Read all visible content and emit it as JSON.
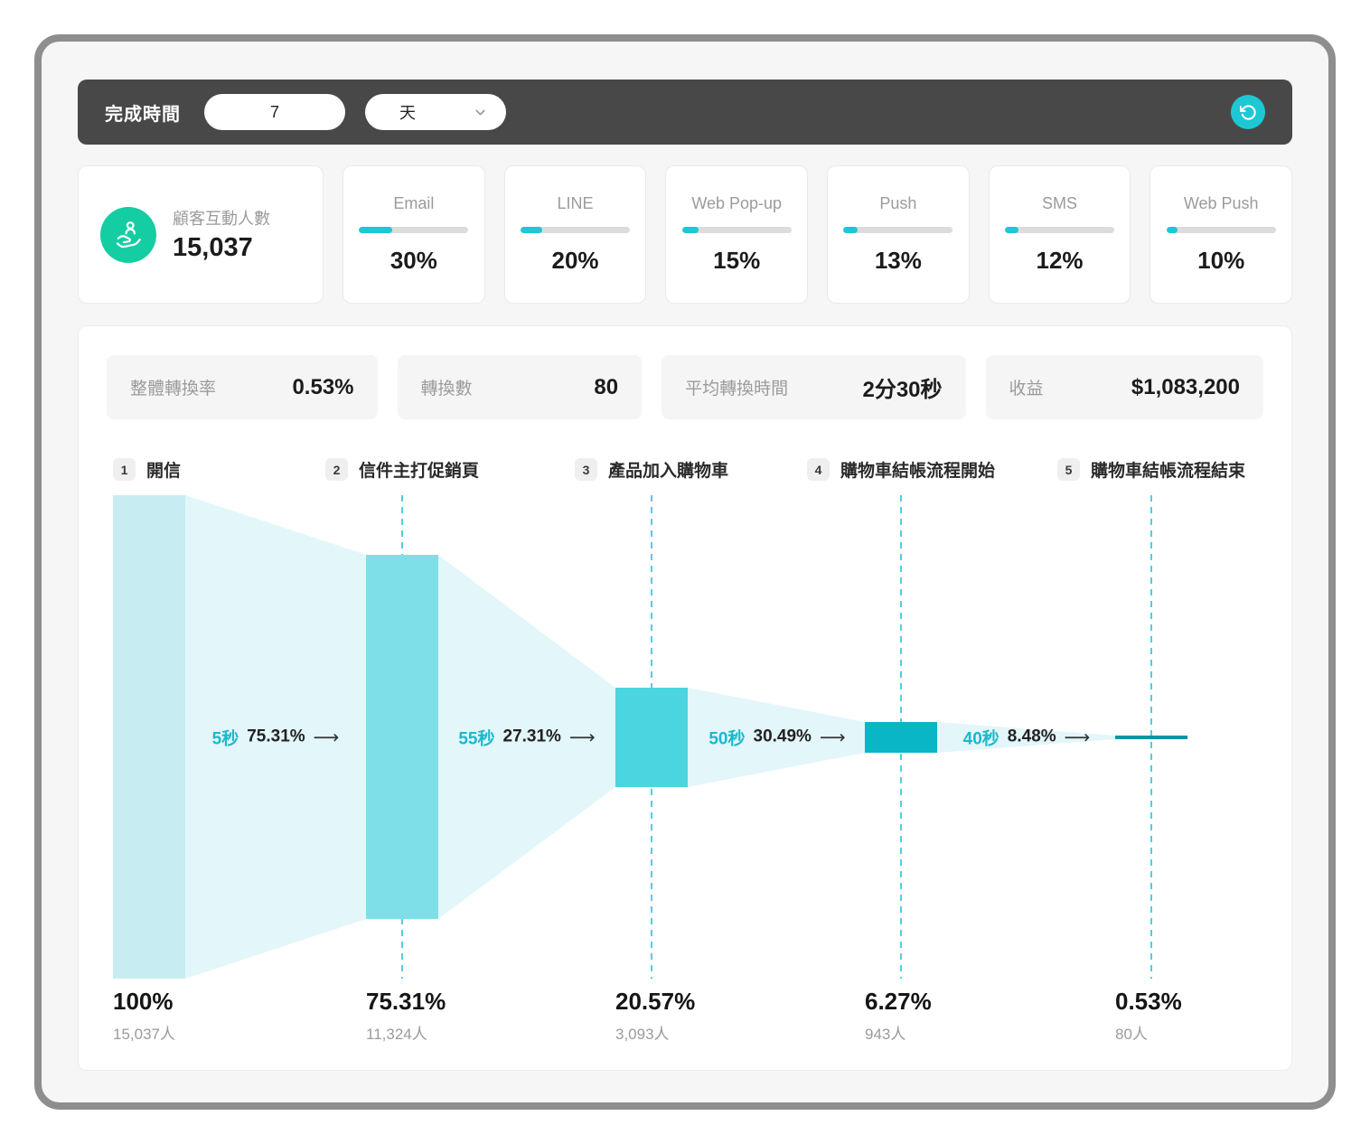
{
  "header": {
    "label": "完成時間",
    "input_value": "7",
    "unit": "天"
  },
  "engagement": {
    "label": "顧客互動人數",
    "value": "15,037"
  },
  "channels": [
    {
      "label": "Email",
      "pct": "30%",
      "value": 30
    },
    {
      "label": "LINE",
      "pct": "20%",
      "value": 20
    },
    {
      "label": "Web Pop-up",
      "pct": "15%",
      "value": 15
    },
    {
      "label": "Push",
      "pct": "13%",
      "value": 13
    },
    {
      "label": "SMS",
      "pct": "12%",
      "value": 12
    },
    {
      "label": "Web Push",
      "pct": "10%",
      "value": 10
    }
  ],
  "stats": [
    {
      "label": "整體轉換率",
      "value": "0.53%"
    },
    {
      "label": "轉換數",
      "value": "80"
    },
    {
      "label": "平均轉換時間",
      "value": "2分30秒"
    },
    {
      "label": "收益",
      "value": "$1,083,200"
    }
  ],
  "funnel": {
    "stages": [
      {
        "num": "1",
        "label": "開信",
        "pct": "100%",
        "people": "15,037人",
        "value": 100
      },
      {
        "num": "2",
        "label": "信件主打促銷頁",
        "pct": "75.31%",
        "people": "11,324人",
        "value": 75.31
      },
      {
        "num": "3",
        "label": "產品加入購物車",
        "pct": "20.57%",
        "people": "3,093人",
        "value": 20.57
      },
      {
        "num": "4",
        "label": "購物車結帳流程開始",
        "pct": "6.27%",
        "people": "943人",
        "value": 6.27
      },
      {
        "num": "5",
        "label": "購物車結帳流程結束",
        "pct": "0.53%",
        "people": "80人",
        "value": 0.53
      }
    ],
    "transitions": [
      {
        "time": "5秒",
        "pct": "75.31%",
        "arrow": "⟶"
      },
      {
        "time": "55秒",
        "pct": "27.31%",
        "arrow": "⟶"
      },
      {
        "time": "50秒",
        "pct": "30.49%",
        "arrow": "⟶"
      },
      {
        "time": "40秒",
        "pct": "8.48%",
        "arrow": "⟶"
      }
    ]
  },
  "colors": {
    "accent_teal": "#1ec7d4",
    "icon_green": "#15cda3",
    "funnel_bars": [
      "#c7edf2",
      "#7fdfe8",
      "#4bd5e0",
      "#0ab5c6",
      "#0b93a8"
    ],
    "funnel_link": "#e3f6fa",
    "dashed_line": "#4fcfdf"
  },
  "chart_data": {
    "type": "funnel",
    "categories": [
      "開信",
      "信件主打促銷頁",
      "產品加入購物車",
      "購物車結帳流程開始",
      "購物車結帳流程結束"
    ],
    "values": [
      100,
      75.31,
      20.57,
      6.27,
      0.53
    ],
    "counts": [
      15037,
      11324,
      3093,
      943,
      80
    ],
    "step_conversion": [
      "75.31%",
      "27.31%",
      "30.49%",
      "8.48%"
    ],
    "step_time": [
      "5秒",
      "55秒",
      "50秒",
      "40秒"
    ]
  }
}
